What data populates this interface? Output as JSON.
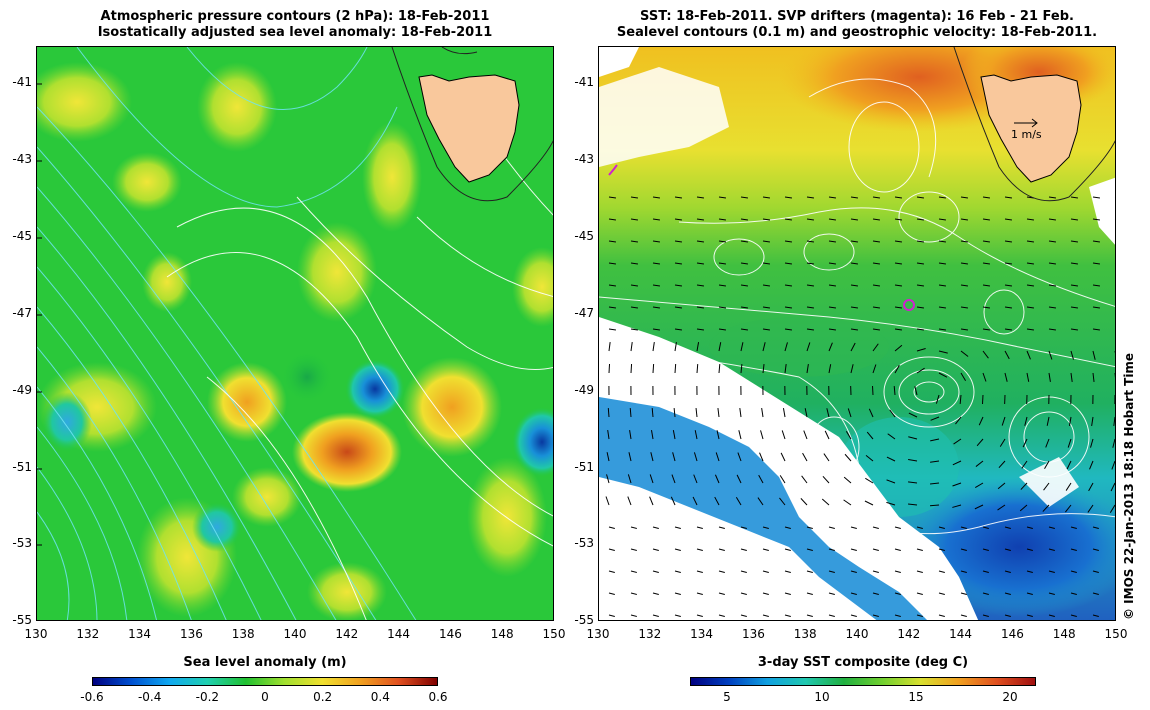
{
  "left_panel": {
    "title_line1": "Atmospheric pressure contours (2 hPa): 18-Feb-2011",
    "title_line2": "Isostatically adjusted sea level anomaly: 18-Feb-2011",
    "y_ticks": [
      "-41",
      "-43",
      "-45",
      "-47",
      "-49",
      "-51",
      "-53",
      "-55"
    ],
    "x_ticks": [
      "130",
      "132",
      "134",
      "136",
      "138",
      "140",
      "142",
      "144",
      "146",
      "148",
      "150"
    ],
    "colorbar": {
      "title": "Sea level anomaly (m)",
      "ticks": [
        "-0.6",
        "-0.4",
        "-0.2",
        "0",
        "0.2",
        "0.4",
        "0.6"
      ]
    }
  },
  "right_panel": {
    "title_line1": "SST: 18-Feb-2011. SVP drifters (magenta): 16 Feb - 21 Feb.",
    "title_line2": "Sealevel contours (0.1 m) and geostrophic velocity: 18-Feb-2011.",
    "scale_arrow_label": "1 m/s",
    "y_ticks": [
      "-41",
      "-43",
      "-45",
      "-47",
      "-49",
      "-51",
      "-53",
      "-55"
    ],
    "x_ticks": [
      "130",
      "132",
      "134",
      "136",
      "138",
      "140",
      "142",
      "144",
      "146",
      "148",
      "150"
    ],
    "colorbar": {
      "title": "3-day SST composite (deg C)",
      "ticks": [
        "5",
        "10",
        "15",
        "20"
      ]
    }
  },
  "credit": "© IMOS 22-Jan-2013 18:18 Hobart Time",
  "colors": {
    "land": "#f9c89c",
    "drifter": "#d020d0",
    "contour_pressure": "#6ee0f0",
    "contour_sealevel": "#ffffff"
  }
}
